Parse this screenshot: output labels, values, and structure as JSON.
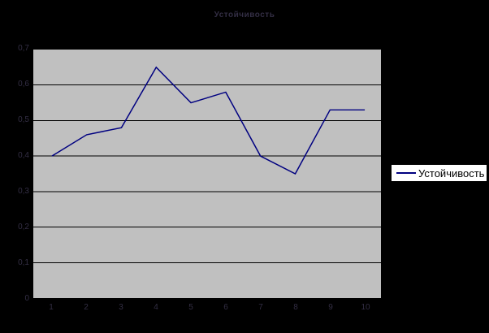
{
  "window": {
    "background_color": "#000000"
  },
  "chart_data": {
    "type": "line",
    "title": "Устойчивость",
    "categories": [
      "1",
      "2",
      "3",
      "4",
      "5",
      "6",
      "7",
      "8",
      "9",
      "10"
    ],
    "series": [
      {
        "name": "Устойчивость",
        "values": [
          0.4,
          0.46,
          0.48,
          0.65,
          0.55,
          0.58,
          0.4,
          0.35,
          0.53,
          0.53
        ]
      }
    ],
    "xlabel": "",
    "ylabel": "",
    "ylim": [
      0,
      0.7
    ],
    "ytick_values": [
      0,
      0.1,
      0.2,
      0.3,
      0.4,
      0.5,
      0.6,
      0.7
    ],
    "ytick_labels": [
      "0",
      "0,1",
      "0,2",
      "0,3",
      "0,4",
      "0,5",
      "0,6",
      "0,7"
    ],
    "grid": true,
    "legend": {
      "position": "right",
      "entries": [
        "Устойчивость"
      ]
    },
    "colors": {
      "series_line": "#000080",
      "plot_background": "#c0c0c0",
      "gridline": "#000000",
      "page_background": "#000000",
      "legend_background": "#ffffff",
      "legend_border": "#000000",
      "legend_text": "#000000",
      "faint_axis_text": "#332e44"
    }
  }
}
